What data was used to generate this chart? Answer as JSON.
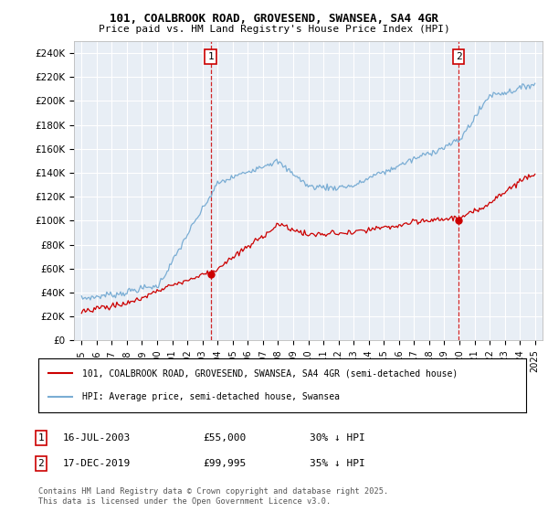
{
  "title": "101, COALBROOK ROAD, GROVESEND, SWANSEA, SA4 4GR",
  "subtitle": "Price paid vs. HM Land Registry's House Price Index (HPI)",
  "legend_property": "101, COALBROOK ROAD, GROVESEND, SWANSEA, SA4 4GR (semi-detached house)",
  "legend_hpi": "HPI: Average price, semi-detached house, Swansea",
  "footer": "Contains HM Land Registry data © Crown copyright and database right 2025.\nThis data is licensed under the Open Government Licence v3.0.",
  "purchase1": {
    "date": "16-JUL-2003",
    "price": 55000,
    "label": "1",
    "x": 2003.54
  },
  "purchase2": {
    "date": "17-DEC-2019",
    "price": 99995,
    "label": "2",
    "x": 2019.96
  },
  "property_color": "#cc0000",
  "hpi_color": "#7aadd4",
  "background_color": "#e8eef5",
  "ylim": [
    0,
    250000
  ],
  "xlim": [
    1994.5,
    2025.5
  ],
  "yticks": [
    0,
    20000,
    40000,
    60000,
    80000,
    100000,
    120000,
    140000,
    160000,
    180000,
    200000,
    220000,
    240000
  ],
  "yticklabels": [
    "£0",
    "£20K",
    "£40K",
    "£60K",
    "£80K",
    "£100K",
    "£120K",
    "£140K",
    "£160K",
    "£180K",
    "£200K",
    "£220K",
    "£240K"
  ]
}
